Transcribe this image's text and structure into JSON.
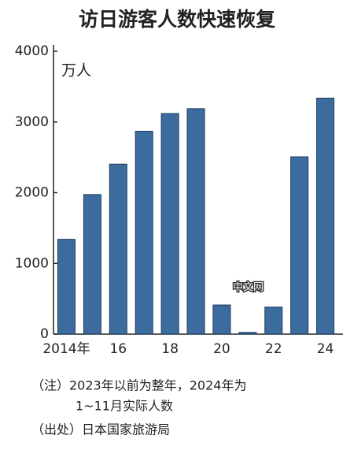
{
  "chart_data": {
    "type": "bar",
    "title": "访日游客人数快速恢复",
    "unit_label": "万人",
    "categories": [
      "2014年",
      null,
      "16",
      null,
      "18",
      null,
      "20",
      null,
      "22",
      null,
      "24"
    ],
    "values": [
      1341,
      1974,
      2404,
      2869,
      3119,
      3188,
      412,
      25,
      383,
      2507,
      3337
    ],
    "color": "#3c6b9d",
    "ylim": [
      0,
      4000
    ],
    "yticks": [
      0,
      1000,
      2000,
      3000,
      4000
    ],
    "grid": false,
    "watermark": "中文网",
    "notes": [
      "（注）2023年以前为整年，2024年为",
      "1~11月实际人数",
      "（出处）日本国家旅游局"
    ]
  }
}
